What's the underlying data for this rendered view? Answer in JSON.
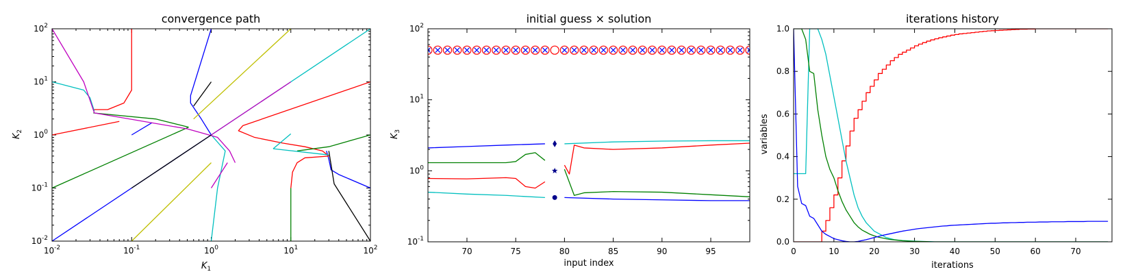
{
  "figure": {
    "width": 1643,
    "height": 400
  },
  "chart_data": [
    {
      "type": "line",
      "title": "convergence path",
      "xlabel": "K",
      "xlabel_sub": "1",
      "ylabel": "K",
      "ylabel_sub": "2",
      "xscale": "log",
      "yscale": "log",
      "xlim": [
        0.01,
        100
      ],
      "ylim": [
        0.01,
        100
      ],
      "tick_base": "10",
      "tick_exponents": [
        "-2",
        "-1",
        "0",
        "1",
        "2"
      ],
      "grid": false,
      "series": [
        {
          "color": "#0000ff",
          "points": [
            [
              0.01,
              0.01
            ],
            [
              1,
              1
            ]
          ]
        },
        {
          "color": "#0000ff",
          "points": [
            [
              0.1,
              1
            ],
            [
              0.18,
              1.7
            ]
          ]
        },
        {
          "color": "#0000ff",
          "points": [
            [
              1,
              100
            ],
            [
              0.55,
              5.5
            ],
            [
              0.55,
              4
            ],
            [
              0.75,
              2
            ],
            [
              1,
              1
            ]
          ]
        },
        {
          "color": "#0000ff",
          "points": [
            [
              28,
              0.5
            ],
            [
              30,
              0.35
            ],
            [
              32,
              0.22
            ],
            [
              40,
              0.18
            ],
            [
              100,
              0.1
            ]
          ]
        },
        {
          "color": "#ff0000",
          "points": [
            [
              0.1,
              100
            ],
            [
              0.1,
              7
            ],
            [
              0.08,
              4
            ],
            [
              0.05,
              3
            ],
            [
              0.033,
              3
            ]
          ]
        },
        {
          "color": "#ff0000",
          "points": [
            [
              0.01,
              1
            ],
            [
              0.07,
              1.8
            ]
          ]
        },
        {
          "color": "#ff0000",
          "points": [
            [
              100,
              10
            ],
            [
              2.5,
              1.5
            ],
            [
              2.2,
              1.2
            ],
            [
              3.5,
              0.9
            ],
            [
              8,
              0.7
            ],
            [
              15,
              0.6
            ],
            [
              25,
              0.5
            ],
            [
              30,
              0.4
            ]
          ]
        },
        {
          "color": "#ff0000",
          "points": [
            [
              10,
              0.1
            ],
            [
              10.5,
              0.2
            ],
            [
              12,
              0.3
            ],
            [
              15,
              0.37
            ],
            [
              30,
              0.4
            ]
          ]
        },
        {
          "color": "#008000",
          "points": [
            [
              0.01,
              0.1
            ],
            [
              0.52,
              1.4
            ]
          ]
        },
        {
          "color": "#008000",
          "points": [
            [
              0.033,
              2.6
            ],
            [
              0.2,
              2
            ],
            [
              0.52,
              1.4
            ]
          ]
        },
        {
          "color": "#008000",
          "points": [
            [
              100,
              1
            ],
            [
              30,
              0.6
            ],
            [
              12,
              0.5
            ]
          ]
        },
        {
          "color": "#008000",
          "points": [
            [
              10,
              0.01
            ],
            [
              10,
              0.1
            ]
          ]
        },
        {
          "color": "#00bfbf",
          "points": [
            [
              0.01,
              10
            ],
            [
              0.025,
              7
            ],
            [
              0.03,
              5
            ],
            [
              0.034,
              2.8
            ]
          ]
        },
        {
          "color": "#00bfbf",
          "points": [
            [
              1,
              0.01
            ],
            [
              1.2,
              0.1
            ],
            [
              1.5,
              0.5
            ],
            [
              1,
              1
            ]
          ]
        },
        {
          "color": "#00bfbf",
          "points": [
            [
              1,
              1
            ],
            [
              100,
              100
            ]
          ]
        },
        {
          "color": "#00bfbf",
          "points": [
            [
              6,
              0.55
            ],
            [
              10,
              1.05
            ]
          ]
        },
        {
          "color": "#00bfbf",
          "points": [
            [
              6,
              0.55
            ],
            [
              30,
              0.42
            ]
          ]
        },
        {
          "color": "#bf00bf",
          "points": [
            [
              0.01,
              100
            ],
            [
              0.025,
              10
            ],
            [
              0.034,
              2.6
            ],
            [
              0.5,
              1.3
            ],
            [
              1.2,
              0.9
            ],
            [
              1.7,
              0.5
            ],
            [
              2,
              0.3
            ]
          ]
        },
        {
          "color": "#bf00bf",
          "points": [
            [
              1,
              0.1
            ],
            [
              1.6,
              0.3
            ]
          ]
        },
        {
          "color": "#bf00bf",
          "points": [
            [
              1,
              1
            ],
            [
              10,
              10
            ]
          ]
        },
        {
          "color": "#000000",
          "points": [
            [
              0.1,
              0.1
            ],
            [
              1,
              1
            ]
          ]
        },
        {
          "color": "#000000",
          "points": [
            [
              0.6,
              3.5
            ],
            [
              1,
              10
            ]
          ]
        },
        {
          "color": "#000000",
          "points": [
            [
              30,
              0.5
            ],
            [
              35,
              0.12
            ],
            [
              100,
              0.01
            ]
          ]
        },
        {
          "color": "#bfbf00",
          "points": [
            [
              0.1,
              0.01
            ],
            [
              1,
              0.3
            ]
          ]
        },
        {
          "color": "#bfbf00",
          "points": [
            [
              0.6,
              2
            ],
            [
              10,
              100
            ]
          ]
        }
      ]
    },
    {
      "type": "line",
      "title": "initial guess × solution",
      "xlabel": "input index",
      "ylabel": "K",
      "ylabel_sub": "3",
      "xscale": "linear",
      "yscale": "log",
      "xlim": [
        66,
        99
      ],
      "ylim": [
        0.1,
        100
      ],
      "xticks": [
        70,
        75,
        80,
        85,
        90,
        95
      ],
      "tick_base": "10",
      "tick_exponents": [
        "-1",
        "0",
        "1",
        "2"
      ],
      "grid": false,
      "series": [
        {
          "color": "#0000ff",
          "points": [
            [
              66,
              2.1
            ],
            [
              70,
              2.2
            ],
            [
              74,
              2.3
            ],
            [
              78,
              2.4
            ]
          ]
        },
        {
          "color": "#0000ff",
          "points": [
            [
              80,
              0.42
            ],
            [
              85,
              0.4
            ],
            [
              90,
              0.39
            ],
            [
              95,
              0.38
            ],
            [
              99,
              0.38
            ]
          ]
        },
        {
          "color": "#008000",
          "points": [
            [
              66,
              1.3
            ],
            [
              70,
              1.3
            ],
            [
              74,
              1.3
            ],
            [
              75,
              1.35
            ],
            [
              76,
              1.7
            ],
            [
              77,
              1.8
            ],
            [
              78,
              1.4
            ]
          ]
        },
        {
          "color": "#008000",
          "points": [
            [
              80,
              1.05
            ],
            [
              81,
              0.45
            ],
            [
              82,
              0.49
            ],
            [
              85,
              0.51
            ],
            [
              90,
              0.5
            ],
            [
              95,
              0.46
            ],
            [
              99,
              0.43
            ]
          ]
        },
        {
          "color": "#ff0000",
          "points": [
            [
              66,
              0.78
            ],
            [
              70,
              0.77
            ],
            [
              74,
              0.8
            ],
            [
              75,
              0.78
            ],
            [
              76,
              0.6
            ],
            [
              77,
              0.57
            ],
            [
              78,
              0.7
            ]
          ]
        },
        {
          "color": "#ff0000",
          "points": [
            [
              80,
              1.2
            ],
            [
              80.5,
              0.9
            ],
            [
              81,
              2.3
            ],
            [
              82,
              2.1
            ],
            [
              85,
              2.0
            ],
            [
              90,
              2.1
            ],
            [
              95,
              2.3
            ],
            [
              99,
              2.45
            ]
          ]
        },
        {
          "color": "#00bfbf",
          "points": [
            [
              66,
              0.5
            ],
            [
              70,
              0.47
            ],
            [
              74,
              0.45
            ],
            [
              78,
              0.42
            ]
          ]
        },
        {
          "color": "#00bfbf",
          "points": [
            [
              80,
              2.4
            ],
            [
              85,
              2.55
            ],
            [
              90,
              2.62
            ],
            [
              95,
              2.65
            ],
            [
              99,
              2.65
            ]
          ]
        }
      ],
      "initial_guess_points": {
        "x": [
          79,
          79,
          79
        ],
        "y": [
          2.4,
          1.0,
          0.42
        ],
        "markers": [
          "diamond",
          "star",
          "circle"
        ],
        "color": "#00008b"
      },
      "circle_markers": {
        "y": 50,
        "x_start": 66,
        "x_end": 99,
        "color": "#ff0000"
      },
      "x_markers": {
        "y": 50,
        "x_start": 66,
        "x_end": 99,
        "skip": [
          79
        ],
        "color": "#0000ff"
      }
    },
    {
      "type": "line",
      "title": "iterations history",
      "xlabel": "iterations",
      "ylabel": "variables",
      "xscale": "linear",
      "yscale": "linear",
      "xlim": [
        0,
        79
      ],
      "ylim": [
        0,
        1
      ],
      "xticks": [
        "0",
        "10",
        "20",
        "30",
        "40",
        "50",
        "60",
        "70"
      ],
      "yticks": [
        "0.0",
        "0.2",
        "0.4",
        "0.6",
        "0.8",
        "1.0"
      ],
      "grid": false,
      "series": [
        {
          "color": "#ff0000",
          "step": true,
          "values": [
            0,
            0,
            0,
            0,
            0,
            0,
            0,
            0.05,
            0.1,
            0.16,
            0.22,
            0.3,
            0.38,
            0.45,
            0.52,
            0.58,
            0.62,
            0.66,
            0.7,
            0.73,
            0.76,
            0.79,
            0.81,
            0.83,
            0.85,
            0.865,
            0.88,
            0.89,
            0.9,
            0.91,
            0.92,
            0.928,
            0.935,
            0.942,
            0.948,
            0.953,
            0.958,
            0.962,
            0.966,
            0.97,
            0.973,
            0.976,
            0.978,
            0.98,
            0.982,
            0.984,
            0.986,
            0.988,
            0.99,
            0.991,
            0.992,
            0.993,
            0.994,
            0.995,
            0.996,
            0.997,
            0.998,
            0.998,
            0.999,
            0.999,
            1,
            1,
            1,
            1,
            1,
            1,
            1,
            1,
            1,
            1,
            1,
            1,
            1,
            1,
            1,
            1,
            1,
            1,
            1
          ]
        },
        {
          "color": "#00bfbf",
          "values": [
            0.32,
            0.32,
            0.32,
            0.32,
            1,
            1,
            1,
            0.95,
            0.88,
            0.78,
            0.68,
            0.58,
            0.48,
            0.38,
            0.3,
            0.22,
            0.16,
            0.12,
            0.09,
            0.07,
            0.05,
            0.04,
            0.03,
            0.02,
            0.015,
            0.01,
            0.008,
            0.006,
            0.005,
            0.004,
            0.003,
            0.002,
            0.002,
            0.001,
            0.001,
            0,
            0,
            0,
            0,
            0,
            0,
            0,
            0,
            0,
            0,
            0,
            0,
            0,
            0,
            0,
            0,
            0,
            0,
            0,
            0,
            0,
            0,
            0,
            0,
            0,
            0,
            0,
            0,
            0,
            0,
            0,
            0,
            0,
            0,
            0,
            0,
            0,
            0,
            0,
            0,
            0,
            0,
            0,
            0
          ]
        },
        {
          "color": "#008000",
          "values": [
            1,
            1,
            1,
            0.95,
            0.8,
            0.79,
            0.62,
            0.5,
            0.4,
            0.34,
            0.3,
            0.24,
            0.19,
            0.15,
            0.12,
            0.09,
            0.07,
            0.055,
            0.045,
            0.035,
            0.028,
            0.022,
            0.018,
            0.014,
            0.011,
            0.009,
            0.007,
            0.005,
            0.004,
            0.003,
            0.002,
            0.002,
            0.001,
            0.001,
            0,
            0,
            0,
            0,
            0,
            0,
            0,
            0,
            0,
            0,
            0,
            0,
            0,
            0,
            0,
            0,
            0,
            0,
            0,
            0,
            0,
            0,
            0,
            0,
            0,
            0,
            0,
            0,
            0,
            0,
            0,
            0,
            0,
            0,
            0,
            0,
            0,
            0,
            0,
            0,
            0,
            0,
            0,
            0,
            0
          ]
        },
        {
          "color": "#0000ff",
          "values": [
            1,
            0.26,
            0.18,
            0.17,
            0.12,
            0.11,
            0.08,
            0.05,
            0.035,
            0.025,
            0.015,
            0.01,
            0.005,
            0.002,
            0,
            0,
            0.002,
            0.006,
            0.01,
            0.015,
            0.02,
            0.025,
            0.03,
            0.034,
            0.038,
            0.042,
            0.046,
            0.05,
            0.053,
            0.056,
            0.059,
            0.062,
            0.064,
            0.066,
            0.068,
            0.07,
            0.072,
            0.074,
            0.075,
            0.077,
            0.078,
            0.079,
            0.08,
            0.081,
            0.082,
            0.083,
            0.084,
            0.085,
            0.086,
            0.087,
            0.087,
            0.088,
            0.089,
            0.089,
            0.09,
            0.09,
            0.091,
            0.091,
            0.092,
            0.092,
            0.092,
            0.093,
            0.093,
            0.093,
            0.094,
            0.094,
            0.094,
            0.094,
            0.095,
            0.095,
            0.095,
            0.095,
            0.095,
            0.096,
            0.096,
            0.096,
            0.096,
            0.096,
            0.096
          ]
        }
      ]
    }
  ]
}
